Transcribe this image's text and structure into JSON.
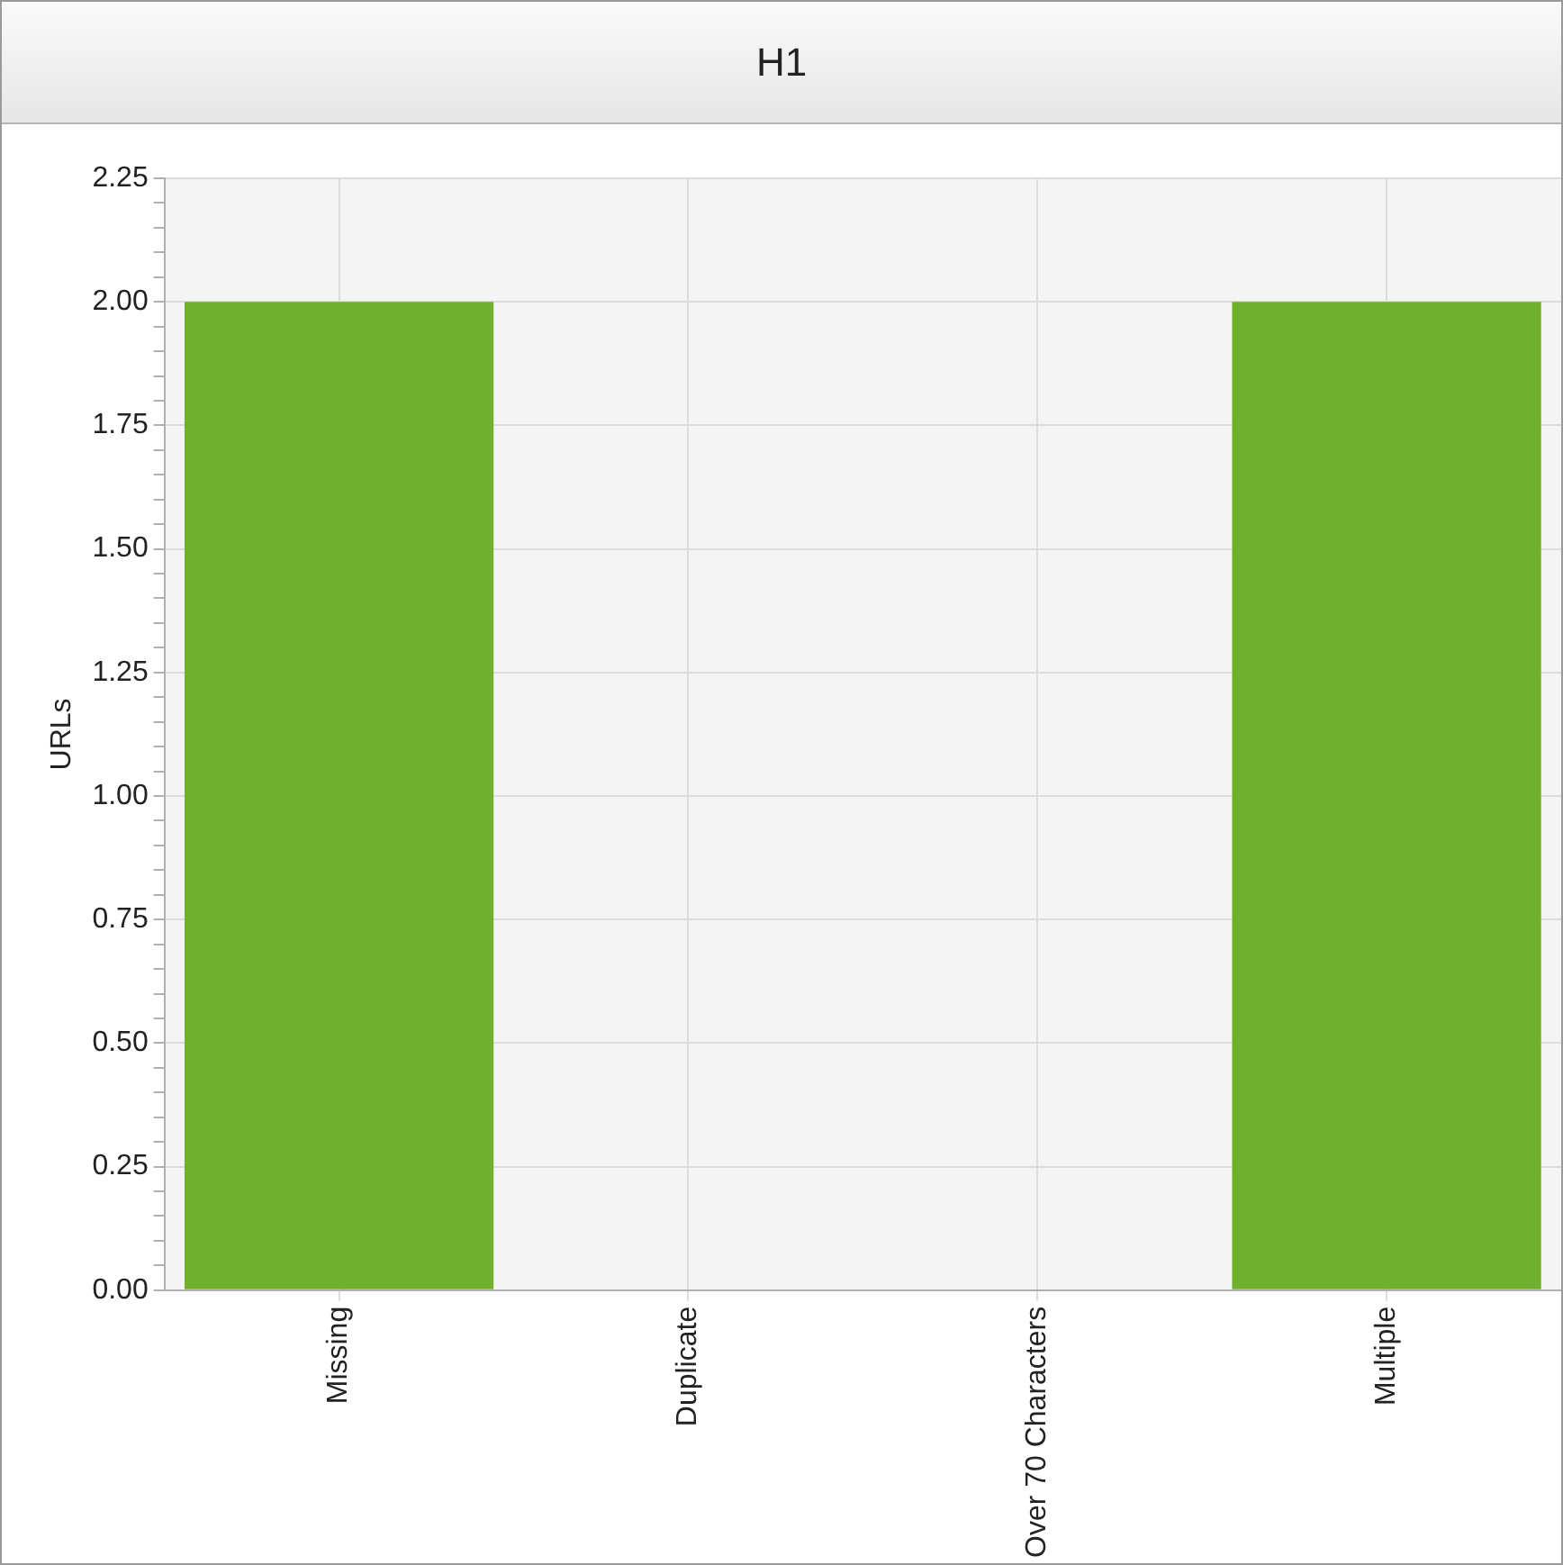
{
  "chart_data": {
    "type": "bar",
    "title": "H1",
    "ylabel": "URLs",
    "categories": [
      "Missing",
      "Duplicate",
      "Over 70 Characters",
      "Multiple"
    ],
    "values": [
      2,
      0,
      0,
      2
    ],
    "color": "#6fb12c",
    "ylim": [
      0,
      2.25
    ],
    "yticks": [
      {
        "value": 0,
        "label": "0.00"
      },
      {
        "value": 0.05,
        "label": null
      },
      {
        "value": 0.1,
        "label": null
      },
      {
        "value": 0.15,
        "label": null
      },
      {
        "value": 0.2,
        "label": null
      },
      {
        "value": 0.25,
        "label": "0.25"
      },
      {
        "value": 0.3,
        "label": null
      },
      {
        "value": 0.35,
        "label": null
      },
      {
        "value": 0.4,
        "label": null
      },
      {
        "value": 0.45,
        "label": null
      },
      {
        "value": 0.5,
        "label": "0.50"
      },
      {
        "value": 0.55,
        "label": null
      },
      {
        "value": 0.6,
        "label": null
      },
      {
        "value": 0.65,
        "label": null
      },
      {
        "value": 0.7,
        "label": null
      },
      {
        "value": 0.75,
        "label": "0.75"
      },
      {
        "value": 0.8,
        "label": null
      },
      {
        "value": 0.85,
        "label": null
      },
      {
        "value": 0.9,
        "label": null
      },
      {
        "value": 0.95,
        "label": null
      },
      {
        "value": 1,
        "label": "1.00"
      },
      {
        "value": 1.05,
        "label": null
      },
      {
        "value": 1.1,
        "label": null
      },
      {
        "value": 1.15,
        "label": null
      },
      {
        "value": 1.2,
        "label": null
      },
      {
        "value": 1.25,
        "label": "1.25"
      },
      {
        "value": 1.3,
        "label": null
      },
      {
        "value": 1.35,
        "label": null
      },
      {
        "value": 1.4,
        "label": null
      },
      {
        "value": 1.45,
        "label": null
      },
      {
        "value": 1.5,
        "label": "1.50"
      },
      {
        "value": 1.55,
        "label": null
      },
      {
        "value": 1.6,
        "label": null
      },
      {
        "value": 1.65,
        "label": null
      },
      {
        "value": 1.7,
        "label": null
      },
      {
        "value": 1.75,
        "label": "1.75"
      },
      {
        "value": 1.8,
        "label": null
      },
      {
        "value": 1.85,
        "label": null
      },
      {
        "value": 1.9,
        "label": null
      },
      {
        "value": 1.95,
        "label": null
      },
      {
        "value": 2,
        "label": "2.00"
      },
      {
        "value": 2.05,
        "label": null
      },
      {
        "value": 2.1,
        "label": null
      },
      {
        "value": 2.15,
        "label": null
      },
      {
        "value": 2.2,
        "label": null
      },
      {
        "value": 2.25,
        "label": "2.25"
      }
    ],
    "grid": true,
    "legend": false
  }
}
